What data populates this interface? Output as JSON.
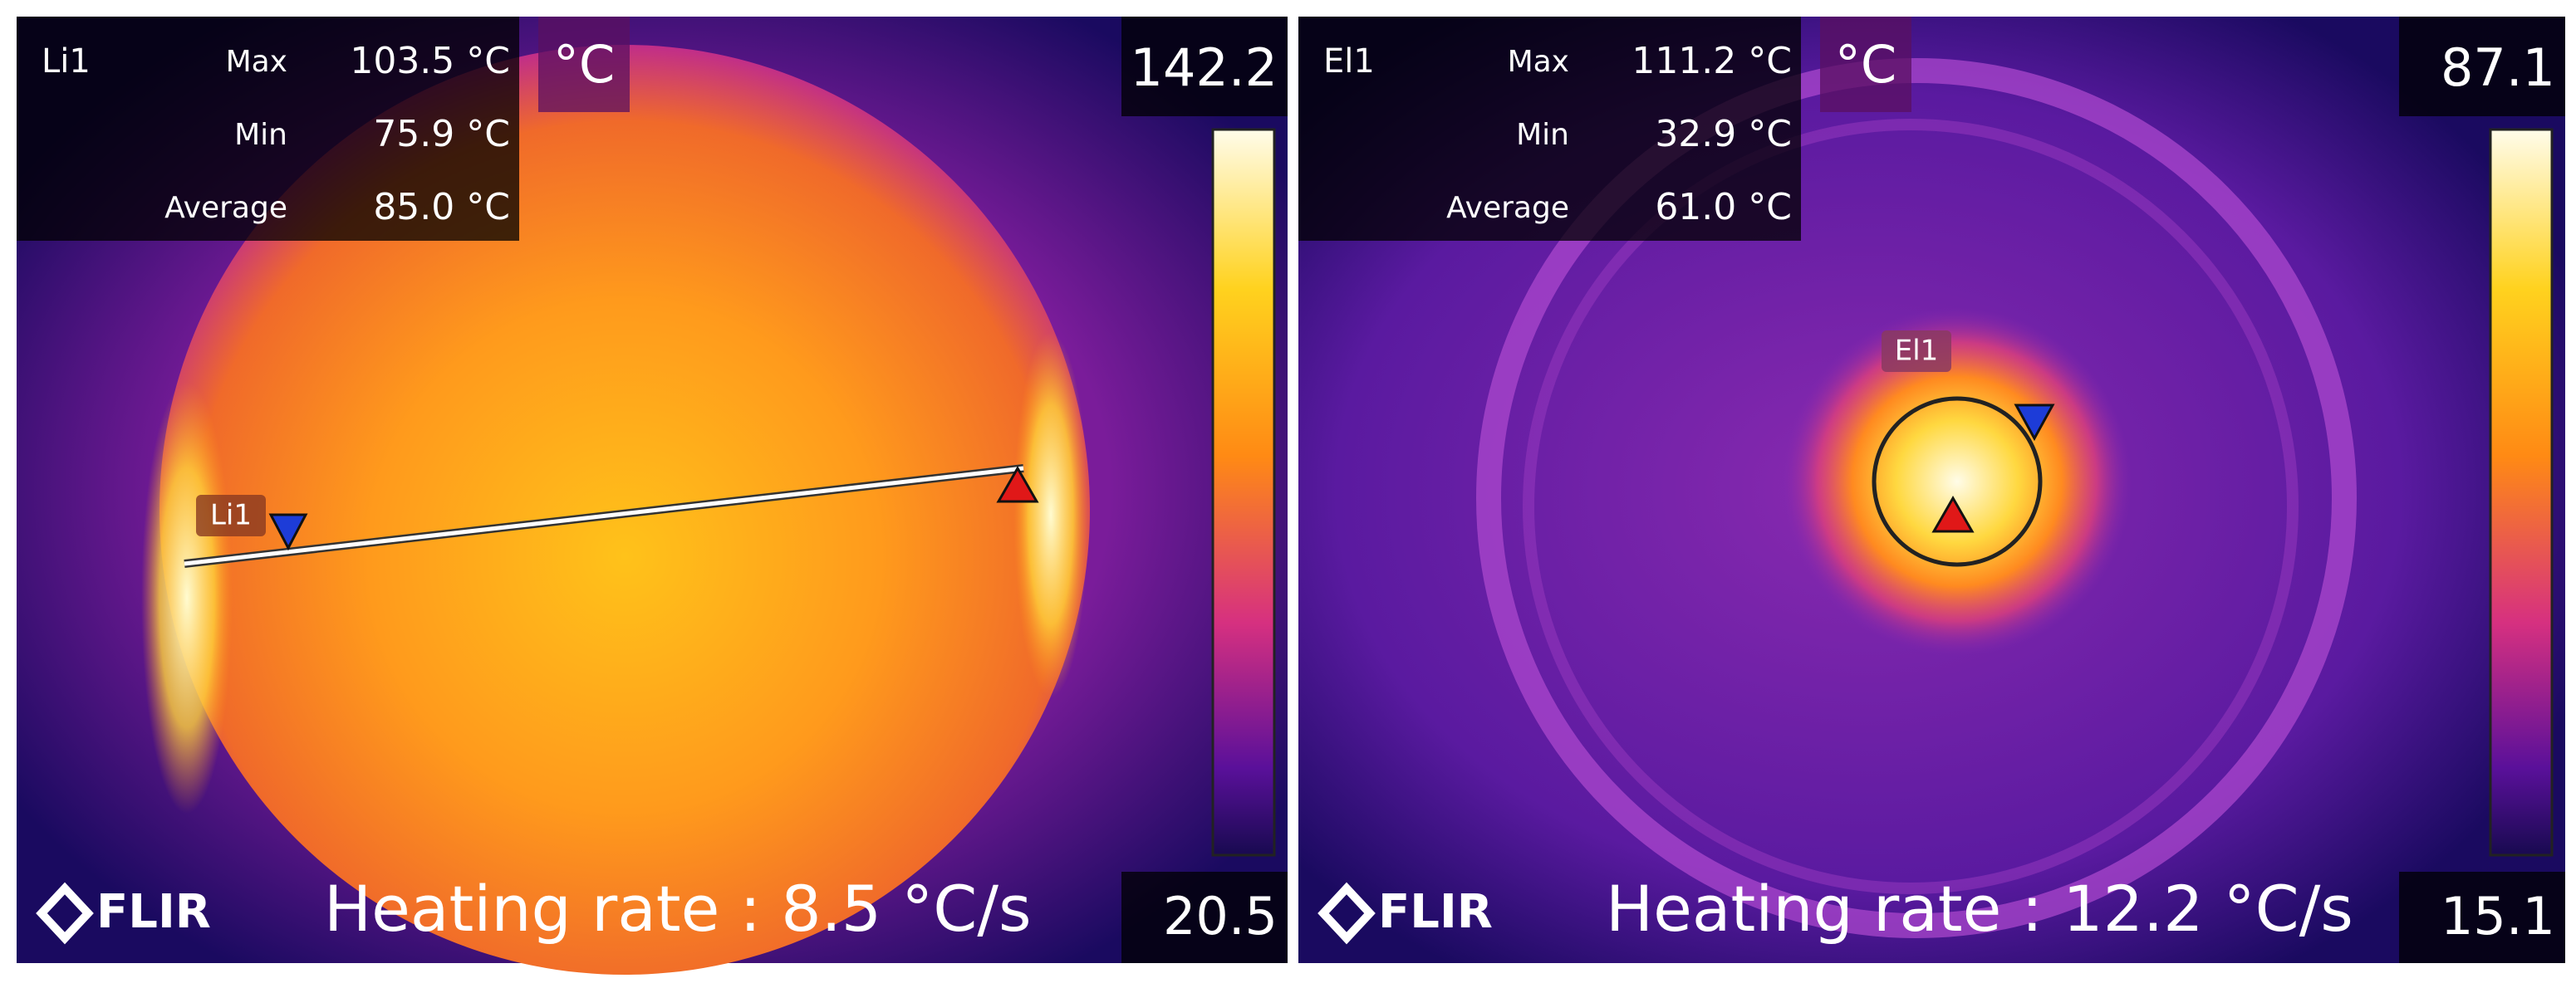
{
  "panels": [
    {
      "tool": "Li1",
      "rows": [
        {
          "label": "Max",
          "value": "103.5 °C"
        },
        {
          "label": "Min",
          "value": "75.9 °C"
        },
        {
          "label": "Average",
          "value": "85.0 °C"
        }
      ],
      "unit": "°C",
      "scale_max": "142.2",
      "scale_min": "20.5",
      "brand": "FLIR",
      "caption": "Heating rate : 8.5 °C/s",
      "marker_label": "Li1"
    },
    {
      "tool": "El1",
      "rows": [
        {
          "label": "Max",
          "value": "111.2 °C"
        },
        {
          "label": "Min",
          "value": "32.9 °C"
        },
        {
          "label": "Average",
          "value": "61.0 °C"
        }
      ],
      "unit": "°C",
      "scale_max": "87.1",
      "scale_min": "15.1",
      "brand": "FLIR",
      "caption": "Heating rate : 12.2 °C/s",
      "marker_label": "El1"
    }
  ]
}
